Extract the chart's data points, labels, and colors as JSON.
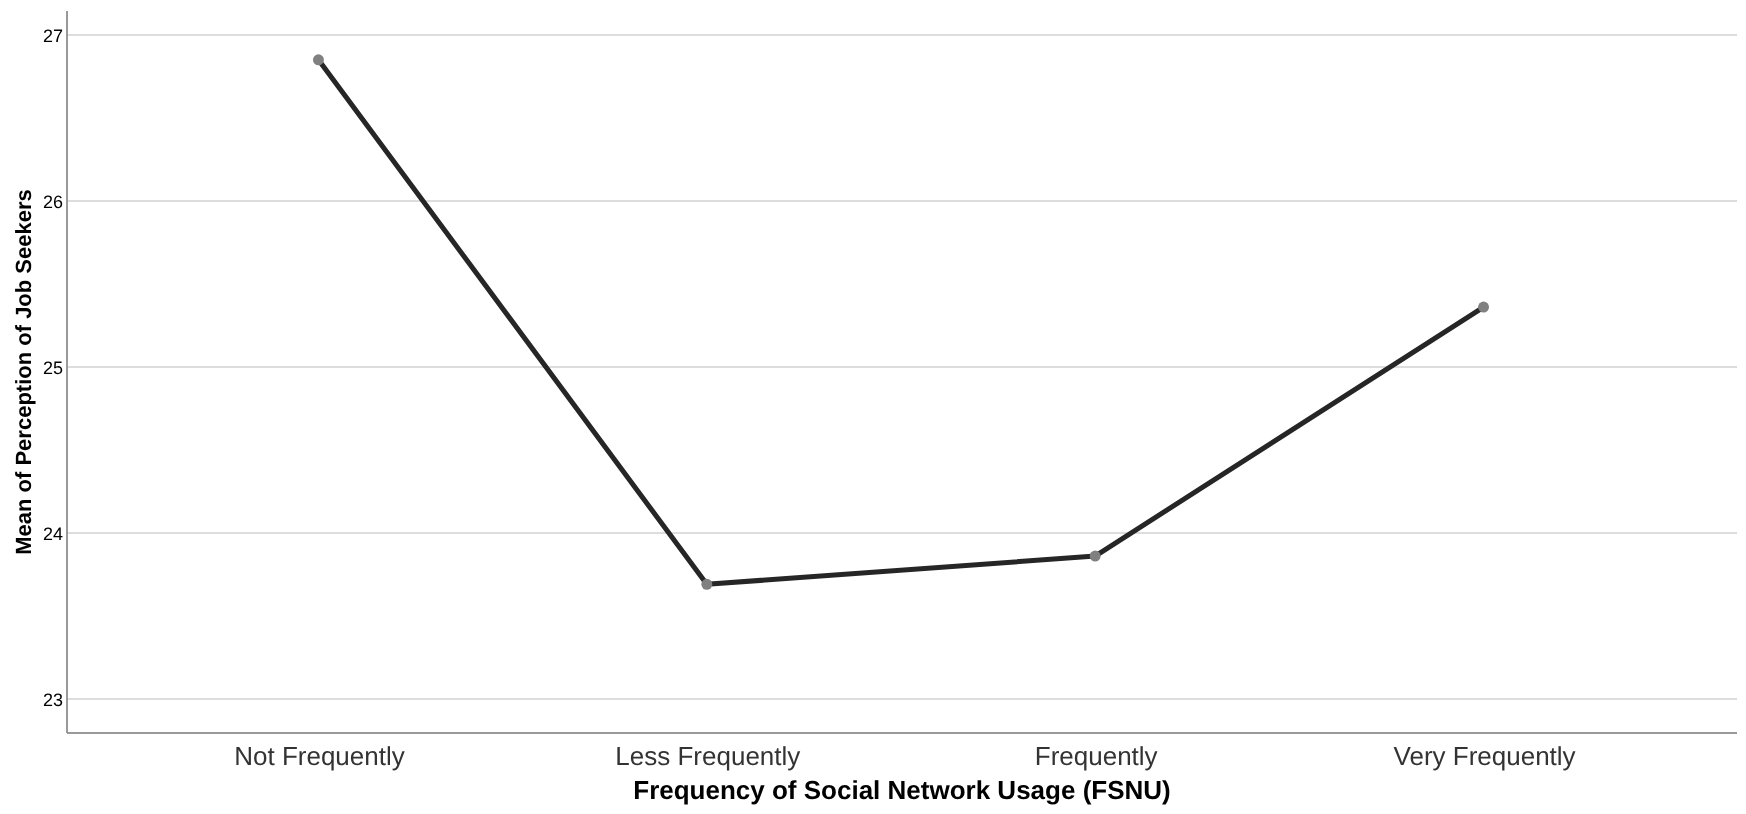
{
  "chart_data": {
    "type": "line",
    "xlabel": "Frequency of Social Network Usage (FSNU)",
    "ylabel": "Mean of Perception of Job Seekers",
    "categories": [
      "Not Frequently",
      "Less Frequently",
      "Frequently",
      "Very Frequently"
    ],
    "series": [
      {
        "color": "#262626",
        "values": [
          26.85,
          23.69,
          23.86,
          25.36
        ]
      }
    ],
    "ylim": [
      22.8,
      27.15
    ],
    "yticks": [
      23,
      24,
      25,
      26,
      27
    ],
    "grid": "y",
    "marker": "circle",
    "line_style": "solid"
  }
}
